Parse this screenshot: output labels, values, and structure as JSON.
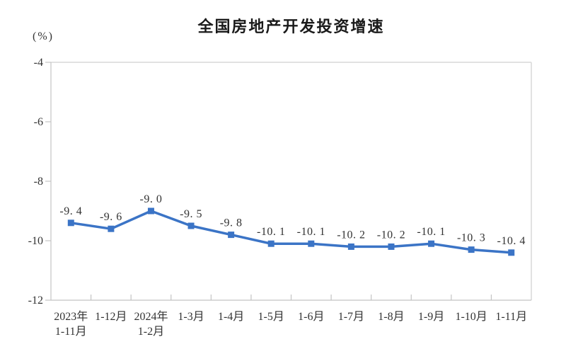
{
  "header": {
    "title": "全国房地产开发投资增速",
    "unit_label": "(%)"
  },
  "chart_data": {
    "type": "line",
    "title": "全国房地产开发投资增速",
    "ylabel": "(%)",
    "xlabel": "",
    "categories": [
      [
        "2023年",
        "1-11月"
      ],
      [
        "1-12月"
      ],
      [
        "2024年",
        "1-2月"
      ],
      [
        "1-3月"
      ],
      [
        "1-4月"
      ],
      [
        "1-5月"
      ],
      [
        "1-6月"
      ],
      [
        "1-7月"
      ],
      [
        "1-8月"
      ],
      [
        "1-9月"
      ],
      [
        "1-10月"
      ],
      [
        "1-11月"
      ]
    ],
    "values": [
      -9.4,
      -9.6,
      -9.0,
      -9.5,
      -9.8,
      -10.1,
      -10.1,
      -10.2,
      -10.2,
      -10.1,
      -10.3,
      -10.4
    ],
    "point_labels": [
      "-9. 4",
      "-9. 6",
      "-9. 0",
      "-9. 5",
      "-9. 8",
      "-10. 1",
      "-10. 1",
      "-10. 2",
      "-10. 2",
      "-10. 1",
      "-10. 3",
      "-10. 4"
    ],
    "ylim": [
      -12,
      -4
    ],
    "yticks": [
      -4,
      -6,
      -8,
      -10,
      -12
    ],
    "ytick_labels": [
      "-4",
      "-6",
      "-8",
      "-10",
      "-12"
    ],
    "grid": false,
    "legend": "none",
    "marker": "square",
    "colors": {
      "line": "#3B74C6",
      "marker": "#3B74C6",
      "axis": "#c4c4c4",
      "frame": "#d9d9d9",
      "text": "#333333",
      "title": "#1a1a1a"
    }
  }
}
